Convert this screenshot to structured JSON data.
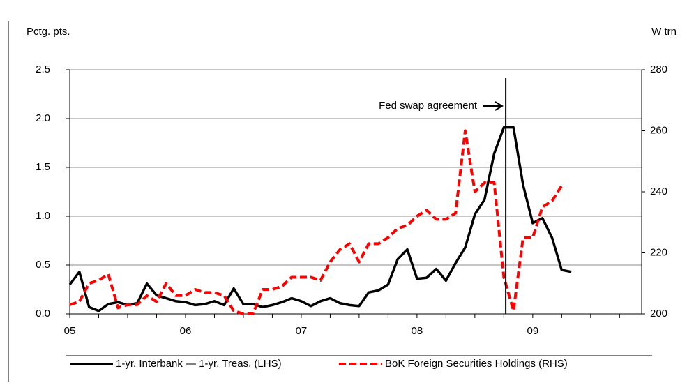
{
  "chart_data": {
    "type": "line",
    "y_label": "Pctg. pts.",
    "y2_label": "W trn",
    "annotation": "Fed swap agreement",
    "categories": [
      "05",
      null,
      null,
      null,
      null,
      null,
      null,
      null,
      null,
      null,
      null,
      null,
      "06",
      null,
      null,
      null,
      null,
      null,
      null,
      null,
      null,
      null,
      null,
      null,
      "07",
      null,
      null,
      null,
      null,
      null,
      null,
      null,
      null,
      null,
      null,
      null,
      "08",
      null,
      null,
      null,
      null,
      null,
      null,
      null,
      null,
      null,
      null,
      null,
      "09",
      null,
      null,
      null,
      null,
      null,
      null,
      null,
      null,
      null,
      null,
      null
    ],
    "series": [
      {
        "name": "1-yr. Interbank — 1-yr. Treas. (LHS)",
        "color": "#000000",
        "dash": false,
        "values": [
          0.3,
          0.43,
          0.07,
          0.03,
          0.1,
          0.12,
          0.09,
          0.11,
          0.31,
          0.19,
          0.16,
          0.13,
          0.12,
          0.09,
          0.1,
          0.13,
          0.09,
          0.26,
          0.1,
          0.1,
          0.07,
          0.09,
          0.12,
          0.16,
          0.13,
          0.08,
          0.13,
          0.16,
          0.11,
          0.09,
          0.08,
          0.22,
          0.24,
          0.3,
          0.56,
          0.66,
          0.36,
          0.37,
          0.46,
          0.34,
          0.52,
          0.68,
          1.02,
          1.17,
          1.64,
          1.91,
          1.91,
          1.32,
          0.93,
          0.98,
          0.78,
          0.45,
          0.43,
          null,
          null,
          null,
          null,
          null,
          null,
          null
        ]
      },
      {
        "name": "BoK Foreign Securities Holdings (RHS)",
        "color": "#ff0000",
        "dash": true,
        "axis": "y2",
        "values": [
          203,
          204,
          210,
          211,
          213,
          202,
          203,
          203,
          206,
          204,
          210,
          206,
          206,
          208,
          207,
          207,
          206,
          201,
          200,
          200,
          208,
          208,
          209,
          212,
          212,
          212,
          211,
          217,
          221,
          223,
          217,
          223,
          223,
          225,
          228,
          229,
          232,
          234,
          231,
          231,
          233,
          260,
          240,
          243,
          243,
          212,
          201,
          225,
          225,
          235,
          237,
          242,
          null,
          null,
          null,
          null,
          null,
          null,
          null,
          null
        ]
      }
    ],
    "ylim": [
      0,
      2.5
    ],
    "yticks": [
      {
        "value": 0,
        "label": "0.0"
      },
      0.5,
      {
        "value": 1,
        "label": "1.0"
      },
      1.5,
      {
        "value": 2,
        "label": "2.0"
      },
      2.5
    ],
    "y2lim": [
      200,
      280
    ],
    "y2ticks": [
      200,
      220,
      240,
      260,
      280
    ],
    "grid": true
  }
}
